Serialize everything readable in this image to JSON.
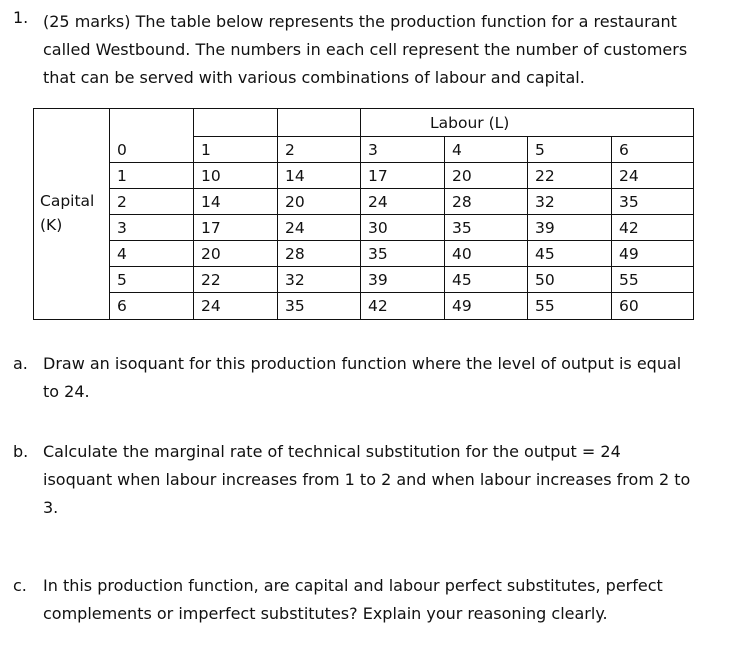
{
  "question": {
    "number": "1.",
    "lines": [
      "(25 marks) The table below represents the production function for a restaurant",
      "called Westbound. The numbers in each cell represent the number of customers",
      "that can be served with various combinations of labour and capital."
    ]
  },
  "table": {
    "labour_header": "Labour (L)",
    "capital_label_line1": "Capital",
    "capital_label_line2": "(K)",
    "header_row": [
      "0",
      "1",
      "2",
      "3",
      "4",
      "5",
      "6"
    ],
    "rows": [
      [
        "1",
        "10",
        "14",
        "17",
        "20",
        "22",
        "24"
      ],
      [
        "2",
        "14",
        "20",
        "24",
        "28",
        "32",
        "35"
      ],
      [
        "3",
        "17",
        "24",
        "30",
        "35",
        "39",
        "42"
      ],
      [
        "4",
        "20",
        "28",
        "35",
        "40",
        "45",
        "49"
      ],
      [
        "5",
        "22",
        "32",
        "39",
        "45",
        "50",
        "55"
      ],
      [
        "6",
        "24",
        "35",
        "42",
        "49",
        "55",
        "60"
      ]
    ]
  },
  "parts": [
    {
      "label": "a.",
      "lines": [
        "Draw an isoquant for this production function where the level of output is equal",
        "to 24."
      ]
    },
    {
      "label": "b.",
      "lines": [
        "Calculate the marginal rate of technical substitution for the output = 24",
        "isoquant when labour increases from 1 to 2 and when labour increases from 2 to",
        "3."
      ]
    },
    {
      "label": "c.",
      "lines": [
        "In this production function, are capital and labour perfect substitutes, perfect",
        "complements or imperfect substitutes? Explain your reasoning clearly."
      ]
    }
  ]
}
